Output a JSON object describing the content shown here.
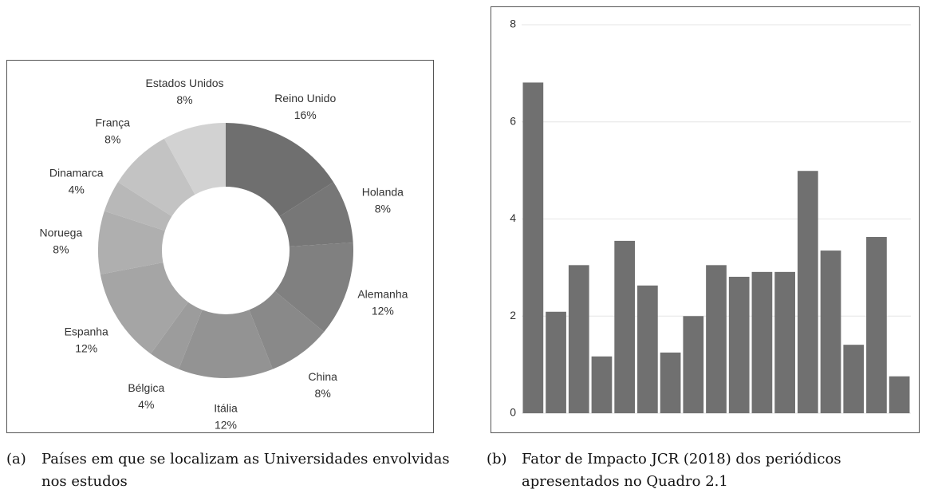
{
  "chart_data": [
    {
      "type": "donut",
      "label": "(a)",
      "caption": "Países em que se localizam as Universidades envolvidas nos estudos",
      "categories": [
        "Reino Unido",
        "Holanda",
        "Alemanha",
        "China",
        "Itália",
        "Bélgica",
        "Espanha",
        "Noruega",
        "Dinamarca",
        "França",
        "Estados Unidos"
      ],
      "values": [
        16,
        8,
        12,
        8,
        12,
        4,
        12,
        8,
        4,
        8,
        8
      ],
      "value_labels": [
        "16%",
        "8%",
        "12%",
        "8%",
        "12%",
        "4%",
        "12%",
        "8%",
        "4%",
        "8%",
        "8%"
      ],
      "colors": [
        "#6f6f6f",
        "#777777",
        "#808080",
        "#898989",
        "#939393",
        "#9c9c9c",
        "#a5a5a5",
        "#afafaf",
        "#b8b8b8",
        "#c3c3c3",
        "#d2d2d2"
      ]
    },
    {
      "type": "bar",
      "label": "(b)",
      "caption": "Fator de Impacto JCR (2018) dos periódicos apresentados no Quadro 2.1",
      "categories": [
        null,
        null,
        null,
        null,
        null,
        null,
        null,
        null,
        null,
        null,
        null,
        null,
        null,
        null,
        null,
        null,
        null
      ],
      "values": [
        6.81,
        2.09,
        3.05,
        1.17,
        3.55,
        2.63,
        1.25,
        2.0,
        3.05,
        2.81,
        2.91,
        2.91,
        4.99,
        3.35,
        1.41,
        3.63,
        0.76
      ],
      "color": "#707070",
      "ylim": [
        0,
        8
      ],
      "yticks": [
        0,
        2,
        4,
        6,
        8
      ],
      "grid": true
    }
  ]
}
